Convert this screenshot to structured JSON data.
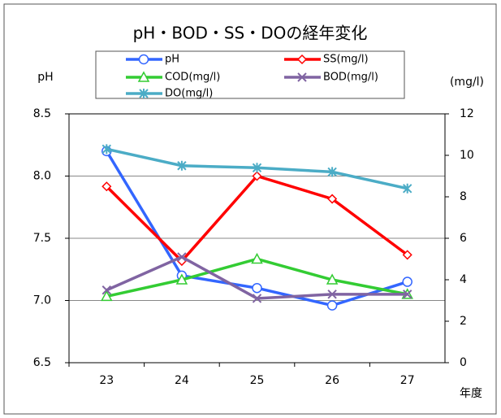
{
  "chart_data": {
    "type": "line",
    "title": "pH・BOD・SS・DOの経年変化",
    "y_label": "pH",
    "y2_label": "(mg/l)",
    "x_label": "年度",
    "categories": [
      "23",
      "24",
      "25",
      "26",
      "27"
    ],
    "ylim": [
      6.5,
      8.5
    ],
    "yticks": [
      6.5,
      {
        "value": 7.0,
        "label": "7.0"
      },
      7.5,
      {
        "value": 8.0,
        "label": "8.0"
      },
      8.5
    ],
    "y2lim": [
      0,
      12
    ],
    "y2ticks": [
      0,
      2,
      4,
      6,
      8,
      10,
      12
    ],
    "grid": true,
    "series": [
      {
        "name": "pH",
        "color": "#3366ff",
        "marker": "circle",
        "values": [
          8.2,
          7.2,
          7.1,
          6.96,
          7.15
        ]
      },
      {
        "name": "SS(mg/l)",
        "color": "#ff0000",
        "marker": "diamond",
        "axis": "y2",
        "values": [
          8.5,
          4.9,
          9.0,
          7.9,
          5.2
        ]
      },
      {
        "name": "COD(mg/l)",
        "color": "#33cc33",
        "marker": "triangle",
        "axis": "y2",
        "values": [
          3.2,
          4.0,
          5.0,
          4.0,
          3.3
        ]
      },
      {
        "name": "BOD(mg/l)",
        "color": "#8064a2",
        "marker": "x",
        "axis": "y2",
        "values": [
          3.5,
          5.1,
          3.1,
          3.3,
          3.3
        ]
      },
      {
        "name": "DO(mg/l)",
        "color": "#4bacc6",
        "marker": "star",
        "axis": "y2",
        "values": [
          10.3,
          9.5,
          9.4,
          9.2,
          8.4
        ]
      }
    ]
  }
}
